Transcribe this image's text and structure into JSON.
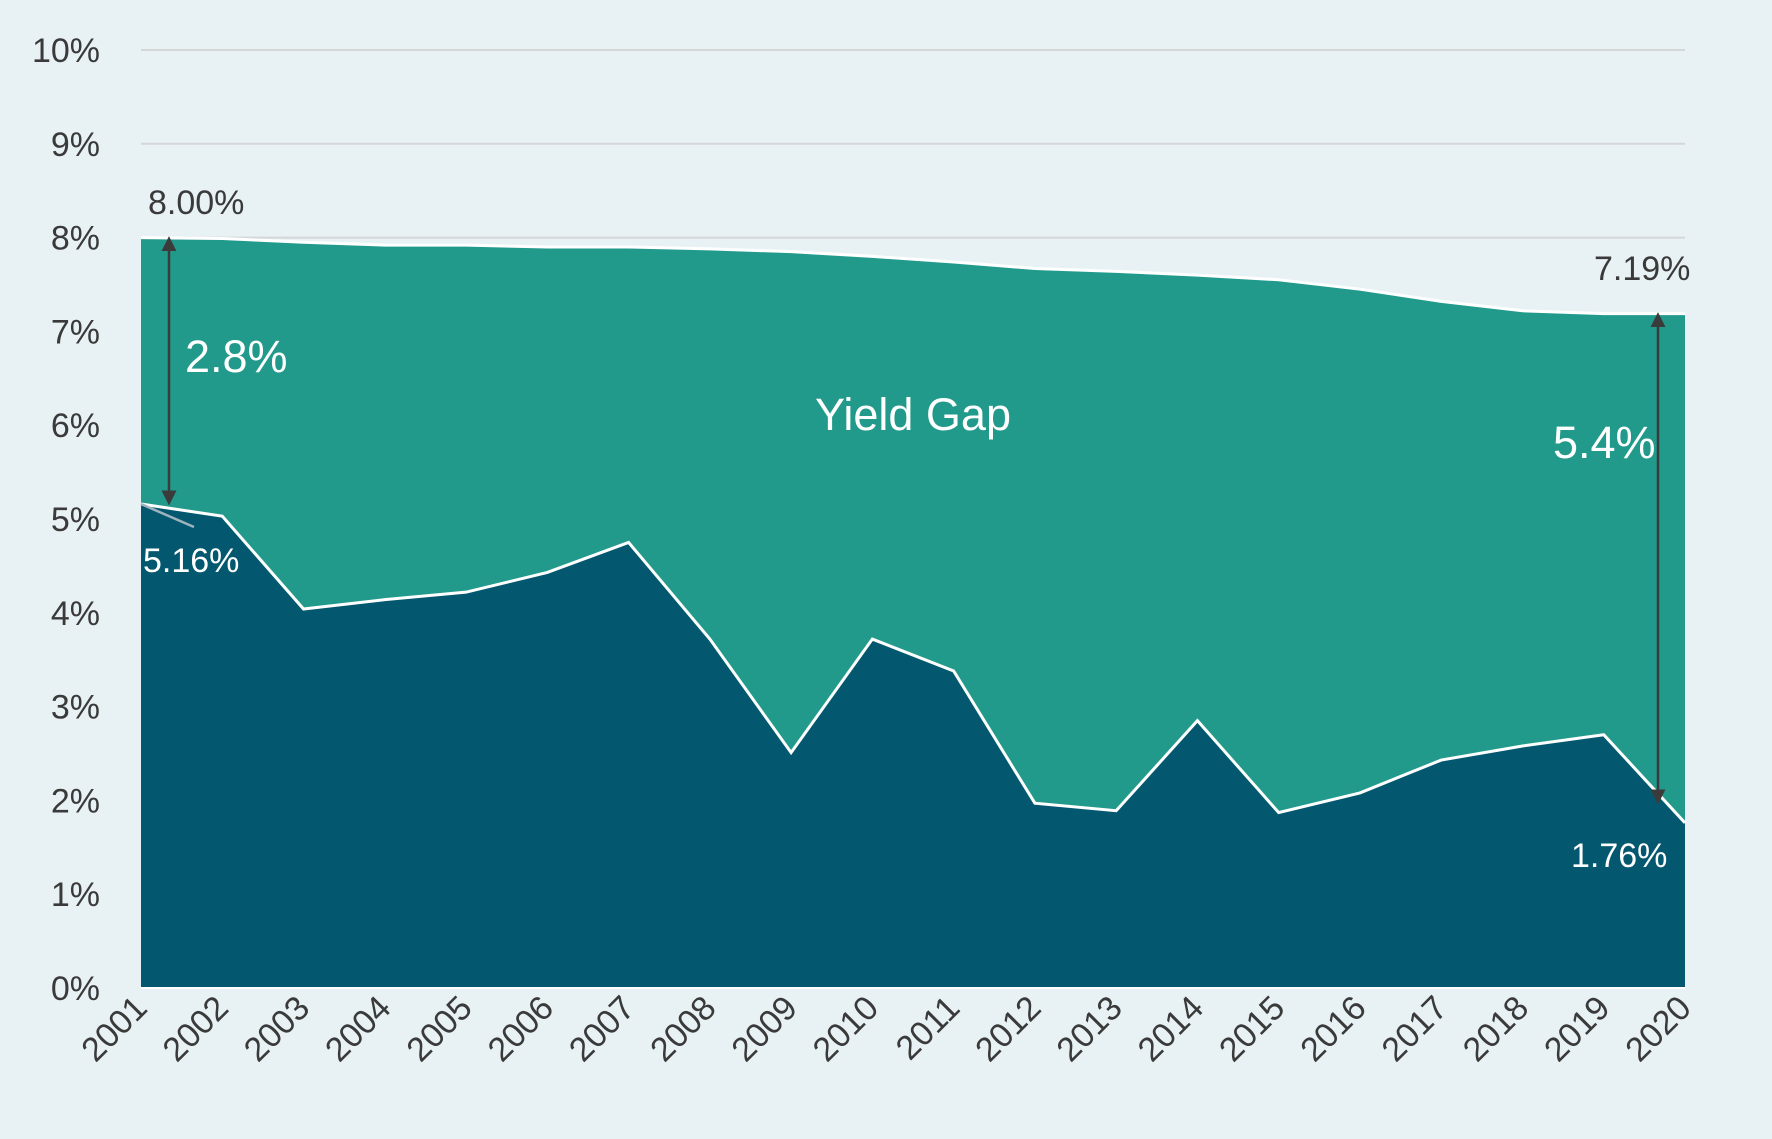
{
  "chart_data": {
    "type": "area",
    "title": "",
    "xlabel": "",
    "ylabel": "",
    "x": [
      "2001",
      "2002",
      "2003",
      "2004",
      "2005",
      "2006",
      "2007",
      "2008",
      "2009",
      "2010",
      "2011",
      "2012",
      "2013",
      "2014",
      "2015",
      "2016",
      "2017",
      "2018",
      "2019",
      "2020"
    ],
    "series": [
      {
        "name": "",
        "color": "#219a8c",
        "values": [
          8.0,
          7.99,
          7.95,
          7.92,
          7.92,
          7.9,
          7.9,
          7.88,
          7.85,
          7.8,
          7.74,
          7.67,
          7.64,
          7.6,
          7.55,
          7.45,
          7.32,
          7.22,
          7.19,
          7.19
        ]
      },
      {
        "name": "",
        "color": "#03586f",
        "values": [
          5.16,
          5.03,
          4.04,
          4.14,
          4.22,
          4.43,
          4.75,
          3.72,
          2.51,
          3.72,
          3.38,
          1.97,
          1.89,
          2.85,
          1.87,
          2.08,
          2.43,
          2.58,
          2.7,
          1.76
        ]
      }
    ],
    "ylim": [
      0,
      10
    ],
    "yticks": [
      "0%",
      "1%",
      "2%",
      "3%",
      "4%",
      "5%",
      "6%",
      "7%",
      "8%",
      "9%",
      "10%"
    ],
    "grid": true,
    "legend": "none",
    "annotations": {
      "gap_area_label": "Yield Gap",
      "start_top_value": "8.00%",
      "start_bottom_value": "5.16%",
      "start_gap": "2.8%",
      "end_top_value": "7.19%",
      "end_bottom_value": "1.76%",
      "end_gap": "5.4%"
    }
  }
}
